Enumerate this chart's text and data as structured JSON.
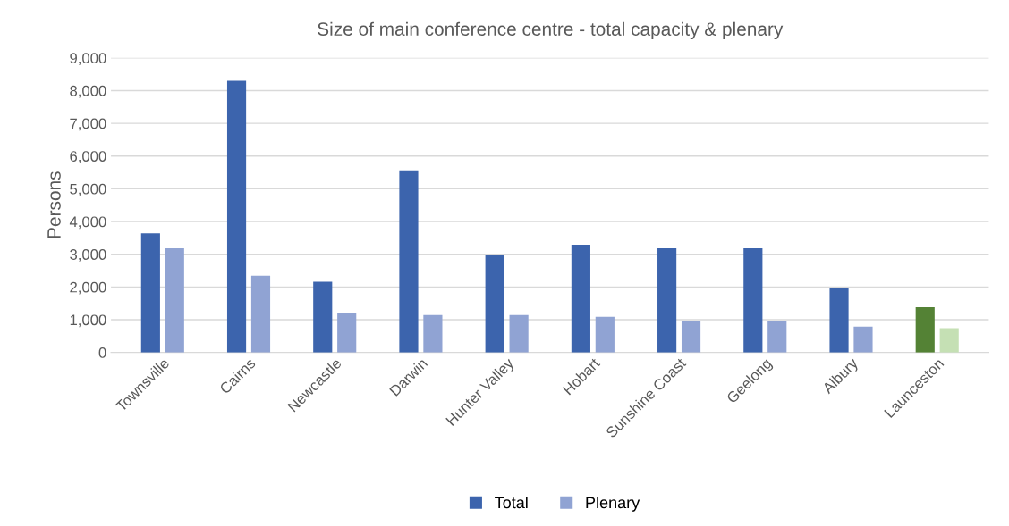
{
  "chart_data": {
    "type": "bar",
    "title": "Size of main conference centre - total capacity & plenary",
    "ylabel": "Persons",
    "categories": [
      "Townsville",
      "Cairns",
      "Newcastle",
      "Darwin",
      "Hunter Valley",
      "Hobart",
      "Sunshine Coast",
      "Geelong",
      "Albury",
      "Launceston"
    ],
    "series": [
      {
        "name": "Total",
        "color": "#3c64ad",
        "colors": [
          "#3c64ad",
          "#3c64ad",
          "#3c64ad",
          "#3c64ad",
          "#3c64ad",
          "#3c64ad",
          "#3c64ad",
          "#3c64ad",
          "#3c64ad",
          "#548235"
        ],
        "values": [
          3640,
          8300,
          2160,
          5560,
          2990,
          3290,
          3180,
          3180,
          1980,
          1380
        ]
      },
      {
        "name": "Plenary",
        "color": "#90a3d3",
        "colors": [
          "#90a3d3",
          "#90a3d3",
          "#90a3d3",
          "#90a3d3",
          "#90a3d3",
          "#90a3d3",
          "#90a3d3",
          "#90a3d3",
          "#90a3d3",
          "#c5e0b4"
        ],
        "values": [
          3180,
          2340,
          1210,
          1140,
          1140,
          1090,
          970,
          970,
          790,
          740
        ]
      }
    ],
    "ylim": [
      0,
      9000
    ],
    "yticks": [
      {
        "value": 0,
        "label": "0"
      },
      {
        "value": 1000,
        "label": "1,000"
      },
      {
        "value": 2000,
        "label": "2,000"
      },
      {
        "value": 3000,
        "label": "3,000"
      },
      {
        "value": 4000,
        "label": "4,000"
      },
      {
        "value": 5000,
        "label": "5,000"
      },
      {
        "value": 6000,
        "label": "6,000"
      },
      {
        "value": 7000,
        "label": "7,000"
      },
      {
        "value": 8000,
        "label": "8,000"
      },
      {
        "value": 9000,
        "label": "9,000"
      }
    ],
    "grid": "y",
    "legend": "bottom"
  }
}
